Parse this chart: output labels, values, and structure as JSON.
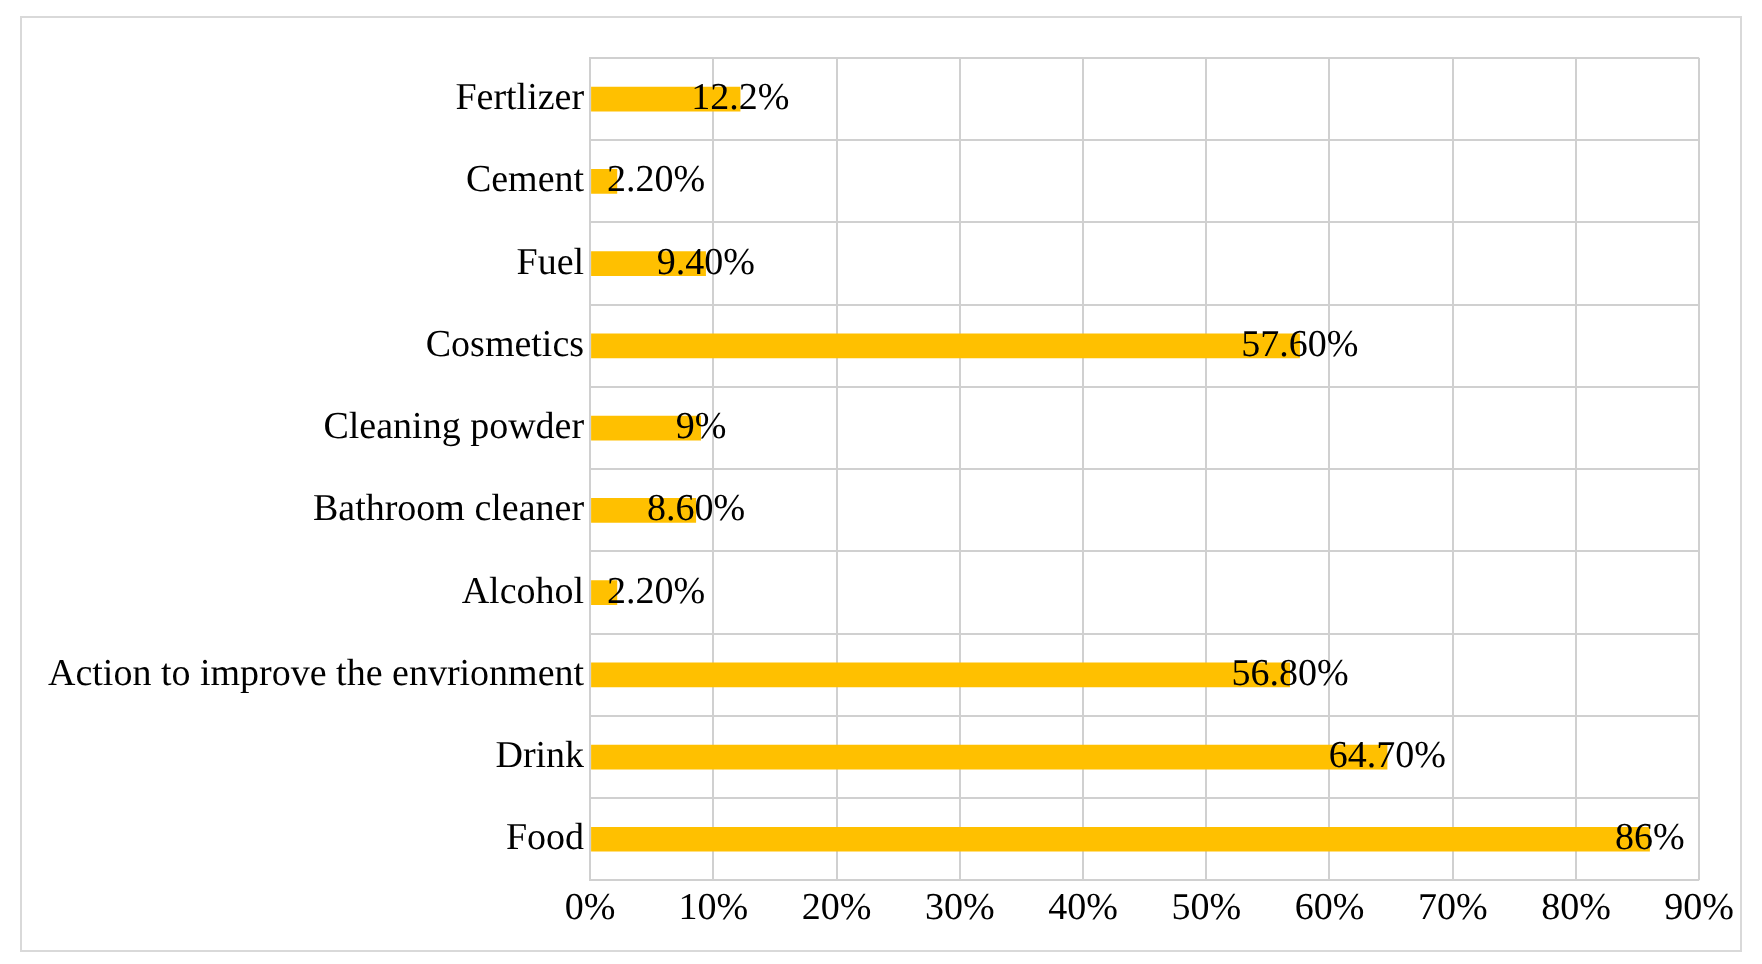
{
  "chart_data": {
    "type": "bar",
    "orientation": "horizontal",
    "categories": [
      "Fertlizer",
      "Cement",
      "Fuel",
      "Cosmetics",
      "Cleaning powder",
      "Bathroom cleaner",
      "Alcohol",
      "Action to improve the envrionment",
      "Drink",
      "Food"
    ],
    "values": [
      12.2,
      2.2,
      9.4,
      57.6,
      9,
      8.6,
      2.2,
      56.8,
      64.7,
      86
    ],
    "value_labels": [
      "12.2%",
      "2.20%",
      "9.40%",
      "57.60%",
      "9%",
      "8.60%",
      "2.20%",
      "56.80%",
      "64.70%",
      "86%"
    ],
    "color": "#ffc000",
    "xlim": [
      0,
      90
    ],
    "xticks": [
      {
        "value": 0,
        "label": "0%"
      },
      {
        "value": 10,
        "label": "10%"
      },
      {
        "value": 20,
        "label": "20%"
      },
      {
        "value": 30,
        "label": "30%"
      },
      {
        "value": 40,
        "label": "40%"
      },
      {
        "value": 50,
        "label": "50%"
      },
      {
        "value": 60,
        "label": "60%"
      },
      {
        "value": 70,
        "label": "70%"
      },
      {
        "value": 80,
        "label": "80%"
      },
      {
        "value": 90,
        "label": "90%"
      }
    ],
    "grid": true,
    "legend": false
  }
}
